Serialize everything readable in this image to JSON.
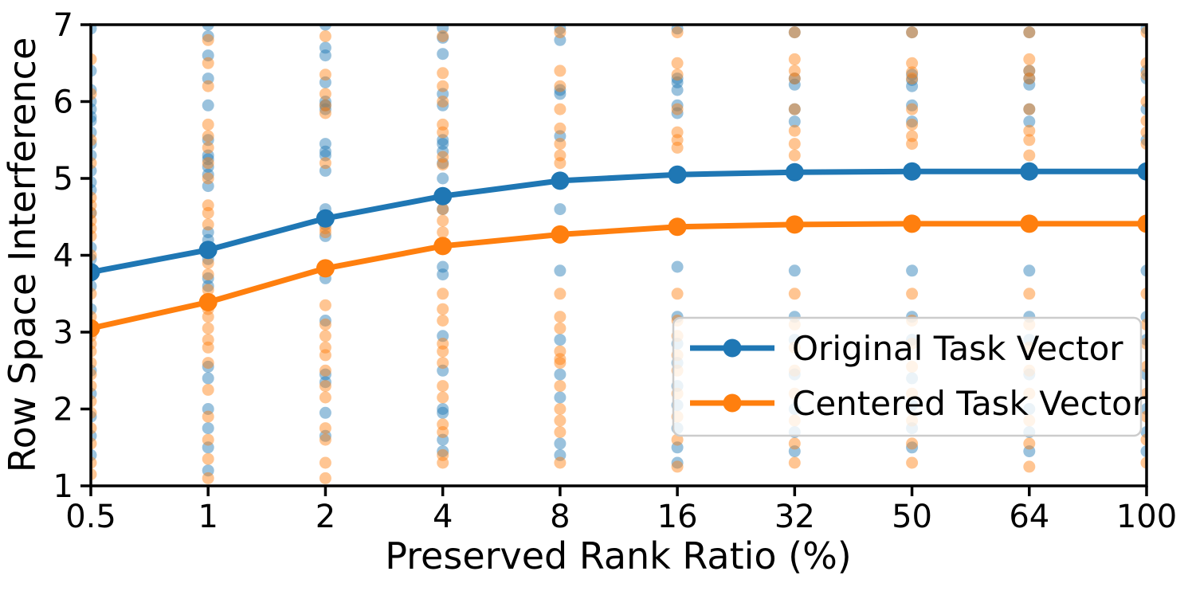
{
  "chart_data": {
    "type": "line",
    "title": "",
    "xlabel": "Preserved Rank Ratio (%)",
    "ylabel": "Row Space Interference",
    "categories": [
      "0.5",
      "1",
      "2",
      "4",
      "8",
      "16",
      "32",
      "50",
      "64",
      "100"
    ],
    "x_scale": "categorical-equal-spacing",
    "ylim": [
      1,
      7
    ],
    "yticks": [
      "1",
      "2",
      "3",
      "4",
      "5",
      "6",
      "7"
    ],
    "grid": "off",
    "legend_position": "lower right",
    "series": [
      {
        "name": "Original Task Vector",
        "color": "#1f77b4",
        "values": [
          3.78,
          4.07,
          4.48,
          4.77,
          4.97,
          5.05,
          5.08,
          5.09,
          5.09,
          5.09
        ]
      },
      {
        "name": "Centered Task Vector",
        "color": "#ff7f0e",
        "values": [
          3.05,
          3.39,
          3.83,
          4.12,
          4.27,
          4.37,
          4.4,
          4.41,
          4.41,
          4.41
        ]
      }
    ],
    "scatter": {
      "alpha": 0.45,
      "marker_radius": 7.5,
      "columns": [
        {
          "category": "0.5",
          "original": [
            6.95,
            6.4,
            6.15,
            6.0,
            5.9,
            5.8,
            5.75,
            5.6,
            5.45,
            5.3,
            5.1,
            4.95,
            4.85,
            4.55,
            4.1,
            3.95,
            3.6,
            3.3,
            2.5,
            2.2,
            1.9,
            1.65,
            1.4
          ],
          "centered": [
            6.55,
            6.1,
            5.5,
            5.2,
            4.75,
            4.65,
            4.55,
            4.45,
            4.35,
            4.25,
            4.0,
            3.5,
            3.2,
            2.95,
            2.85,
            2.75,
            2.6,
            2.45,
            2.3,
            2.1,
            1.95,
            1.75,
            1.55,
            1.3,
            1.15
          ]
        },
        {
          "category": "1",
          "original": [
            7.0,
            6.85,
            6.6,
            6.3,
            5.95,
            5.5,
            5.3,
            5.25,
            5.15,
            5.05,
            4.9,
            4.3,
            4.2,
            3.95,
            3.7,
            3.6,
            2.55,
            2.4,
            2.0,
            1.75,
            1.5,
            1.2
          ],
          "centered": [
            6.8,
            6.5,
            6.2,
            5.7,
            5.55,
            5.4,
            5.2,
            5.0,
            4.65,
            4.55,
            4.4,
            3.9,
            3.75,
            3.55,
            3.3,
            3.2,
            3.05,
            2.9,
            2.8,
            2.6,
            2.25,
            1.9,
            1.6,
            1.35,
            1.1
          ]
        },
        {
          "category": "2",
          "original": [
            7.0,
            6.7,
            6.6,
            6.25,
            6.0,
            5.95,
            5.9,
            5.45,
            5.35,
            5.3,
            5.1,
            4.6,
            4.4,
            4.25,
            3.7,
            3.15,
            2.45,
            2.35,
            1.95,
            1.65
          ],
          "centered": [
            6.85,
            6.35,
            6.1,
            5.95,
            5.85,
            5.2,
            4.45,
            4.35,
            4.3,
            3.35,
            3.1,
            2.95,
            2.8,
            2.7,
            2.5,
            2.3,
            2.15,
            1.75,
            1.6,
            1.3,
            1.1
          ]
        },
        {
          "category": "4",
          "original": [
            6.96,
            6.83,
            6.62,
            6.1,
            5.95,
            5.5,
            5.45,
            5.35,
            5.2,
            5.0,
            4.6,
            3.85,
            3.75,
            2.95,
            2.5,
            2.0,
            1.95,
            1.6,
            1.45
          ],
          "centered": [
            6.85,
            6.37,
            6.2,
            6.0,
            5.7,
            5.6,
            5.28,
            5.18,
            4.6,
            4.45,
            4.3,
            3.5,
            3.3,
            3.15,
            2.85,
            2.75,
            2.6,
            2.3,
            2.15,
            1.8,
            1.7,
            1.4,
            1.3
          ]
        },
        {
          "category": "8",
          "original": [
            6.95,
            6.8,
            6.15,
            6.1,
            5.55,
            4.6,
            3.8,
            2.9,
            2.45,
            2.15,
            1.55,
            1.4
          ],
          "centered": [
            6.9,
            6.4,
            6.2,
            5.9,
            5.65,
            5.45,
            5.3,
            5.2,
            3.5,
            3.2,
            3.05,
            2.75,
            2.65,
            2.6,
            2.3,
            2.0,
            1.85,
            1.7,
            1.3
          ]
        },
        {
          "category": "16",
          "original": [
            6.95,
            6.3,
            6.25,
            6.15,
            5.95,
            5.85,
            3.85,
            3.2,
            2.85,
            2.6,
            2.3,
            2.05,
            1.75,
            1.5,
            1.3
          ],
          "centered": [
            6.9,
            6.5,
            6.35,
            5.9,
            5.6,
            5.5,
            5.4,
            3.5,
            3.15,
            2.95,
            2.7,
            2.5,
            2.2,
            1.9,
            1.6,
            1.25
          ]
        },
        {
          "category": "32",
          "original": [
            6.9,
            6.3,
            6.22,
            5.9,
            5.74,
            3.8,
            3.2,
            2.9,
            2.45,
            2.0,
            1.7,
            1.45
          ],
          "centered": [
            6.9,
            6.55,
            6.4,
            6.3,
            5.9,
            5.62,
            5.45,
            5.3,
            3.5,
            3.1,
            2.8,
            2.5,
            2.2,
            1.85,
            1.55,
            1.3
          ]
        },
        {
          "category": "50",
          "original": [
            6.9,
            6.35,
            6.28,
            6.2,
            5.95,
            5.74,
            3.8,
            3.2,
            2.9,
            2.4,
            2.05,
            1.75,
            1.5
          ],
          "centered": [
            6.9,
            6.5,
            6.38,
            6.3,
            5.9,
            5.7,
            5.55,
            5.45,
            3.5,
            3.15,
            2.85,
            2.55,
            2.2,
            1.85,
            1.55,
            1.3
          ]
        },
        {
          "category": "64",
          "original": [
            6.9,
            6.4,
            6.3,
            6.22,
            5.9,
            5.74,
            3.8,
            3.2,
            2.9,
            2.45,
            2.0,
            1.7,
            1.45
          ],
          "centered": [
            6.9,
            6.55,
            6.4,
            6.3,
            5.9,
            5.62,
            5.5,
            5.3,
            3.5,
            3.1,
            2.8,
            2.5,
            2.2,
            1.85,
            1.55,
            1.25
          ]
        },
        {
          "category": "100",
          "original": [
            6.95,
            6.4,
            6.3,
            5.9,
            5.5,
            3.8,
            3.2,
            2.9,
            2.45,
            2.0,
            1.7,
            1.45
          ],
          "centered": [
            6.9,
            6.5,
            6.35,
            6.0,
            5.75,
            5.6,
            5.45,
            3.5,
            3.1,
            2.85,
            2.55,
            2.2,
            1.9,
            1.6,
            1.3
          ]
        }
      ]
    }
  }
}
